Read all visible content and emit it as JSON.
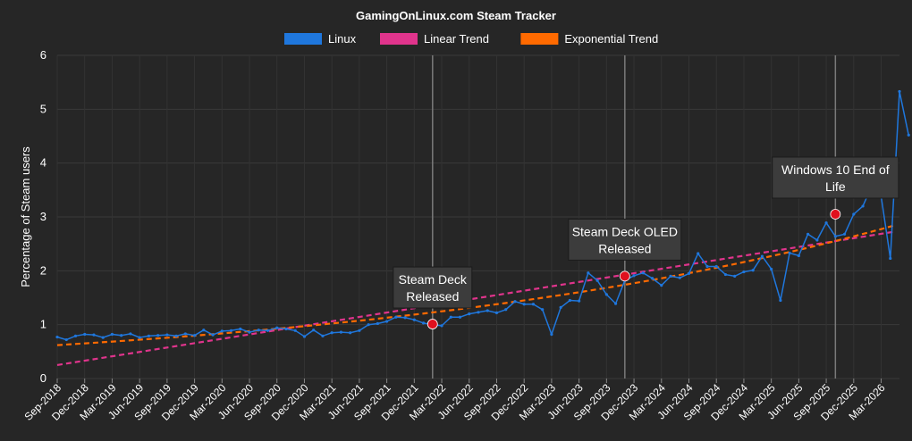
{
  "chart_data": {
    "type": "line",
    "title": "GamingOnLinux.com Steam Tracker",
    "ylabel": "Percentage of Steam users",
    "xlabel": "",
    "ylim": [
      0,
      6
    ],
    "y_ticks": [
      "0",
      "1",
      "2",
      "3",
      "4",
      "5",
      "6"
    ],
    "grid": true,
    "legend_position": "top",
    "x_tick_labels": [
      "Sep-2018",
      "Dec-2018",
      "Mar-2019",
      "Jun-2019",
      "Sep-2019",
      "Dec-2019",
      "Mar-2020",
      "Jun-2020",
      "Sep-2020",
      "Dec-2020",
      "Mar-2021",
      "Jun-2021",
      "Sep-2021",
      "Dec-2021",
      "Mar-2022",
      "Jun-2022",
      "Sep-2022",
      "Dec-2022",
      "Mar-2023",
      "Jun-2023",
      "Sep-2023",
      "Dec-2023",
      "Mar-2024",
      "Jun-2024",
      "Sep-2024",
      "Dec-2024",
      "Mar-2025",
      "Jun-2025",
      "Sep-2025",
      "Dec-2025",
      "Mar-2026"
    ],
    "x_start": "Sep-2018",
    "x_end": "May-2026",
    "series": [
      {
        "name": "Linux",
        "color": "#1f77dd",
        "values": [
          0.77,
          0.72,
          0.79,
          0.82,
          0.81,
          0.76,
          0.82,
          0.8,
          0.83,
          0.76,
          0.79,
          0.8,
          0.81,
          0.79,
          0.83,
          0.8,
          0.9,
          0.81,
          0.88,
          0.89,
          0.92,
          0.86,
          0.9,
          0.89,
          0.94,
          0.92,
          0.89,
          0.78,
          0.9,
          0.79,
          0.85,
          0.86,
          0.85,
          0.89,
          1.0,
          1.02,
          1.06,
          1.14,
          1.13,
          1.09,
          1.03,
          1.0,
          0.98,
          1.14,
          1.14,
          1.2,
          1.23,
          1.26,
          1.22,
          1.28,
          1.43,
          1.38,
          1.38,
          1.28,
          0.82,
          1.32,
          1.45,
          1.44,
          1.96,
          1.82,
          1.56,
          1.39,
          1.82,
          1.91,
          1.96,
          1.86,
          1.73,
          1.9,
          1.87,
          1.95,
          2.32,
          2.08,
          2.08,
          1.93,
          1.9,
          1.98,
          2.01,
          2.27,
          2.03,
          1.45,
          2.33,
          2.28,
          2.68,
          2.57,
          2.89,
          2.64,
          2.68,
          3.05,
          3.2,
          3.58,
          3.38,
          2.23,
          5.33,
          4.52
        ]
      },
      {
        "name": "Linear Trend",
        "color": "#e0348c",
        "start": 0.25,
        "end": 2.73
      },
      {
        "name": "Exponential Trend",
        "color": "#ff6a00",
        "start": 0.62,
        "end": 2.85
      }
    ],
    "annotations": [
      {
        "text": [
          "Steam Deck",
          "Released"
        ],
        "date": "Feb-2022",
        "value": 1.01
      },
      {
        "text": [
          "Steam Deck OLED",
          "Released"
        ],
        "date": "Nov-2023",
        "value": 1.9
      },
      {
        "text": [
          "Windows 10 End of",
          "Life"
        ],
        "date": "Oct-2025",
        "value": 3.05
      }
    ],
    "marker_color": "#e0101e"
  }
}
